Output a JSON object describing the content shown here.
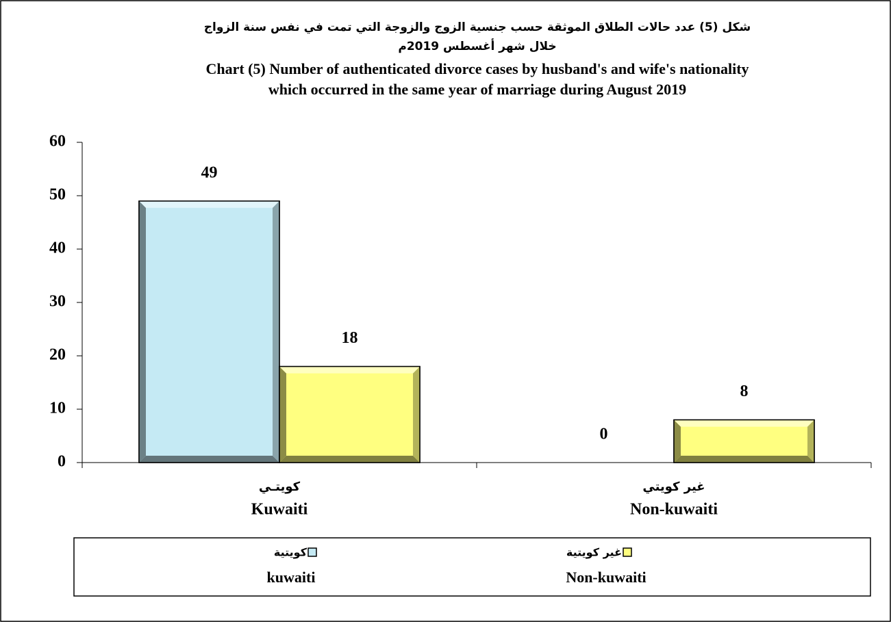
{
  "chart_data": {
    "type": "bar",
    "title_ar": [
      "شكل (5) عدد حالات الطلاق الموثقة حسب جنسية الزوج والزوجة التي تمت في نفس سنة الزواج",
      "خلال شهر أغسطس 2019م"
    ],
    "title": [
      "Chart (5) Number of authenticated divorce cases by husband's and wife's nationality",
      "which occurred in the same year of marriage during August 2019"
    ],
    "categories_ar": [
      "كويتـي",
      "غير كويتي"
    ],
    "categories": [
      "Kuwaiti",
      "Non-kuwaiti"
    ],
    "series": [
      {
        "name": "kuwaiti",
        "name_ar": "كويتية",
        "color": "#c5eaf4",
        "values": [
          49,
          0
        ]
      },
      {
        "name": "Non-kuwaiti",
        "name_ar": "غير كويتية",
        "color": "#ffff80",
        "values": [
          18,
          8
        ]
      }
    ],
    "ylim": [
      0,
      60
    ],
    "yticks": [
      0,
      10,
      20,
      30,
      40,
      50,
      60
    ]
  }
}
